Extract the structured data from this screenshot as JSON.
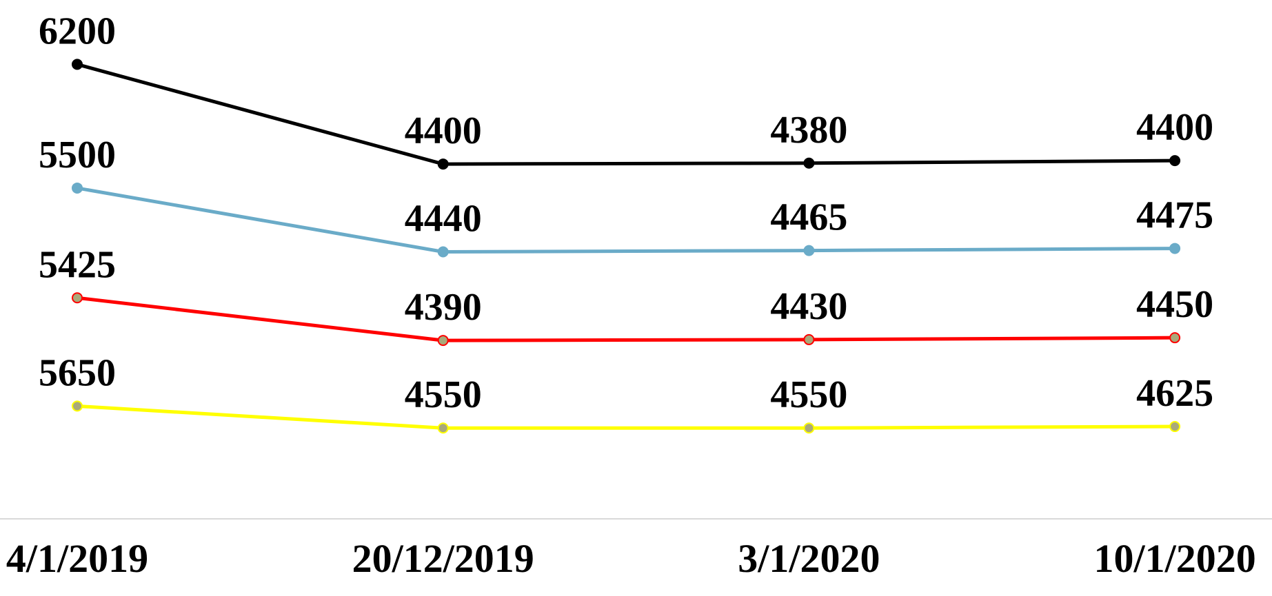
{
  "chart_data": {
    "type": "line",
    "stacked": true,
    "categories": [
      "4/1/2019",
      "20/12/2019",
      "3/1/2020",
      "10/1/2020"
    ],
    "ylim": [
      0,
      26000
    ],
    "series": [
      {
        "color": "#ffff00",
        "marker_color": "#a9a97a",
        "values": [
          5650,
          4550,
          4550,
          4625
        ]
      },
      {
        "color": "#ff0000",
        "marker_color": "#a9a97a",
        "values": [
          5425,
          4390,
          4430,
          4450
        ]
      },
      {
        "color": "#6aabc8",
        "marker_color": "#6aabc8",
        "values": [
          5500,
          4440,
          4465,
          4475
        ]
      },
      {
        "color": "#000000",
        "marker_color": "#000000",
        "values": [
          6200,
          4400,
          4380,
          4400
        ]
      }
    ]
  }
}
